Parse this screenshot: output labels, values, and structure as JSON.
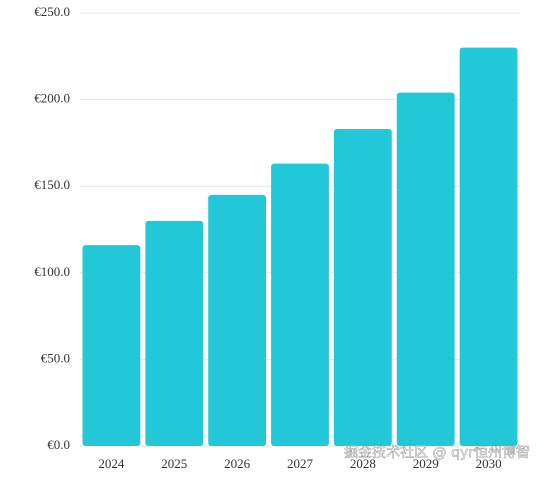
{
  "chart_data": {
    "type": "bar",
    "categories": [
      "2024",
      "2025",
      "2026",
      "2027",
      "2028",
      "2029",
      "2030"
    ],
    "values": [
      116,
      130,
      145,
      163,
      183,
      204,
      230
    ],
    "color": "#22c7d8",
    "ylim": [
      0,
      250
    ],
    "yticks": [
      {
        "value": 0,
        "label": "€0.0"
      },
      {
        "value": 50,
        "label": "€50.0"
      },
      {
        "value": 100,
        "label": "€100.0"
      },
      {
        "value": 150,
        "label": "€150.0"
      },
      {
        "value": 200,
        "label": "€200.0"
      },
      {
        "value": 250,
        "label": "€250.0"
      }
    ],
    "grid": true,
    "watermark": "掘金技术社区 @ qyr恒州博智"
  }
}
